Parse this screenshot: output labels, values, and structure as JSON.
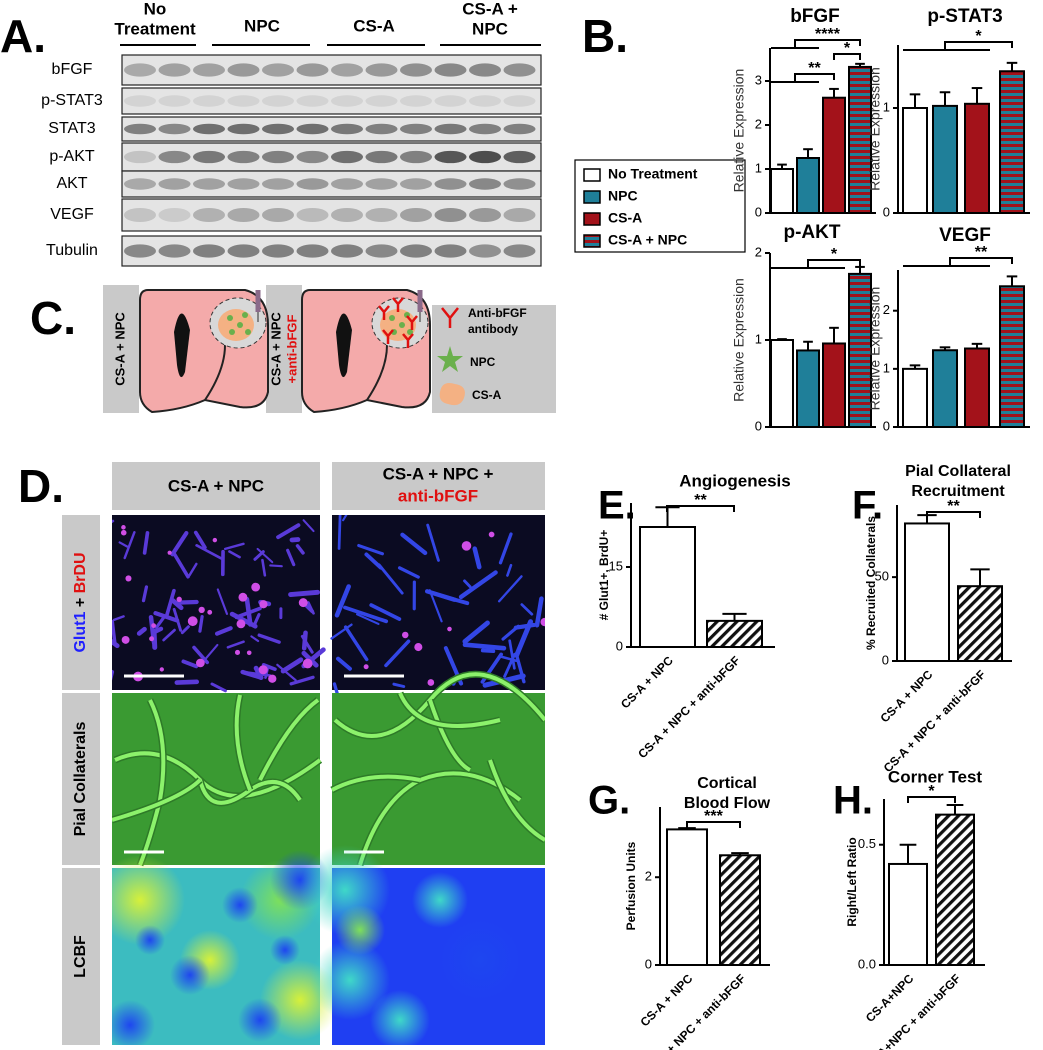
{
  "panel_labels": [
    "A.",
    "B.",
    "C.",
    "D.",
    "E.",
    "F.",
    "G.",
    "H."
  ],
  "blot": {
    "groups": [
      [
        "No",
        "Treatment"
      ],
      [
        "NPC"
      ],
      [
        "CS-A"
      ],
      [
        "CS-A +",
        "NPC"
      ]
    ],
    "rows": [
      "bFGF",
      "p-STAT3",
      "STAT3",
      "p-AKT",
      "AKT",
      "VEGF",
      "Tubulin"
    ]
  },
  "legend": [
    {
      "name": "No Treatment",
      "color": "#ffffff"
    },
    {
      "name": "NPC",
      "color": "#1f7f99"
    },
    {
      "name": "CS-A",
      "color": "#a3121a"
    },
    {
      "name": "CS-A + NPC",
      "color": "#a3121a",
      "stripe_color": "#1f7f99"
    }
  ],
  "diagram": {
    "conditions": [
      [
        "CS-A + NPC"
      ],
      [
        "CS-A + NPC",
        "+anti-bFGF"
      ]
    ],
    "key": [
      [
        "Anti-bFGF",
        "antibody"
      ],
      [
        "NPC"
      ],
      [
        "CS-A"
      ]
    ]
  },
  "images": {
    "columns": [
      [
        "CS-A + NPC"
      ],
      [
        "CS-A + NPC +",
        "anti-bFGF"
      ]
    ],
    "rows": [
      [
        "Glut1",
        " + ",
        "BrDU"
      ],
      [
        "Pial Collaterals"
      ],
      [
        "LCBF"
      ]
    ]
  },
  "chart_data": [
    {
      "type": "bar",
      "title": "bFGF",
      "y_label": "Relative Expression",
      "values": [
        1.0,
        1.25,
        2.62,
        3.32
      ],
      "errors": [
        0.1,
        0.2,
        0.2,
        0.07
      ],
      "ylim": [
        0,
        3.75
      ],
      "yticks": [
        0,
        1,
        2,
        3
      ],
      "annotations": [
        "****",
        "*",
        "**"
      ]
    },
    {
      "type": "bar",
      "title": "p-STAT3",
      "y_label": "Relative Expression",
      "values": [
        1.0,
        1.02,
        1.04,
        1.35
      ],
      "errors": [
        0.13,
        0.13,
        0.15,
        0.08
      ],
      "ylim": [
        0,
        1.6
      ],
      "yticks": [
        0,
        1
      ],
      "annotations": [
        "*"
      ]
    },
    {
      "type": "bar",
      "title": "p-AKT",
      "y_label": "Relative Expression",
      "values": [
        1.0,
        0.88,
        0.96,
        1.76
      ],
      "errors": [
        0.01,
        0.1,
        0.18,
        0.08
      ],
      "ylim": [
        0,
        2
      ],
      "yticks": [
        0,
        1,
        2
      ],
      "annotations": [
        "*"
      ]
    },
    {
      "type": "bar",
      "title": "VEGF",
      "y_label": "Relative Expression",
      "values": [
        1.0,
        1.32,
        1.35,
        2.42
      ],
      "errors": [
        0.06,
        0.05,
        0.08,
        0.17
      ],
      "ylim": [
        0,
        2.7
      ],
      "yticks": [
        0,
        1,
        2
      ],
      "annotations": [
        "**"
      ]
    },
    {
      "type": "bar",
      "title": "Angiogenesis",
      "y_label": "# Glut1+, BrdU+",
      "categories": [
        "CS-A + NPC",
        "CS-A + NPC + anti-bFGF"
      ],
      "values": [
        22.5,
        4.9
      ],
      "errors": [
        3.7,
        1.3
      ],
      "patterns": [
        "solid",
        "hatched"
      ],
      "ylim": [
        0,
        27
      ],
      "yticks": [
        0,
        15
      ],
      "annotations": [
        "**"
      ]
    },
    {
      "type": "bar",
      "title": [
        "Pial Collateral",
        "Recruitment"
      ],
      "y_label": "% Recruited Collaterals",
      "categories": [
        "CS-A + NPC",
        "CS-A + NPC + anti-bFGF"
      ],
      "values": [
        82,
        44.6
      ],
      "errors": [
        5,
        10
      ],
      "patterns": [
        "solid",
        "hatched"
      ],
      "ylim": [
        0,
        93
      ],
      "yticks": [
        0,
        50
      ],
      "annotations": [
        "**"
      ]
    },
    {
      "type": "bar",
      "title": [
        "Cortical",
        "Blood Flow"
      ],
      "y_label": "Perfusion Units",
      "categories": [
        "CS-A + NPC",
        "CS-A + NPC + anti-bFGF"
      ],
      "values": [
        3.09,
        2.5
      ],
      "errors": [
        0.03,
        0.05
      ],
      "patterns": [
        "solid",
        "hatched"
      ],
      "ylim": [
        0,
        3.6
      ],
      "yticks": [
        0,
        2
      ],
      "annotations": [
        "***"
      ]
    },
    {
      "type": "bar",
      "title": "Corner Test",
      "y_label": "Right/Left Ratio",
      "categories": [
        "CS-A+NPC",
        "CS-A+NPC + anti-bFGF"
      ],
      "values": [
        0.42,
        0.625
      ],
      "errors": [
        0.08,
        0.04
      ],
      "patterns": [
        "solid",
        "hatched"
      ],
      "ylim": [
        0,
        0.69
      ],
      "yticks": [
        {
          "value": 0,
          "label": "0.0"
        },
        0.5
      ],
      "annotations": [
        "*"
      ]
    }
  ]
}
